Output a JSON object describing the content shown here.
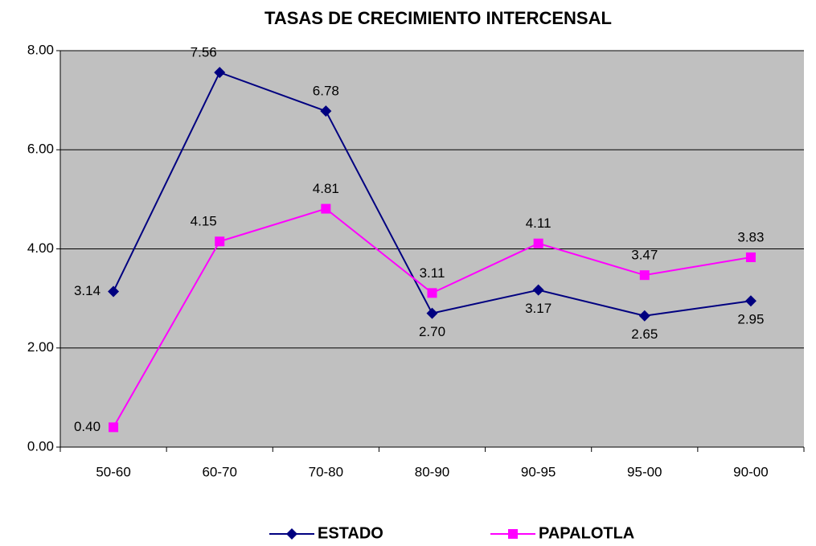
{
  "chart_data": {
    "type": "line",
    "title": "TASAS DE CRECIMIENTO INTERCENSAL",
    "categories": [
      "50-60",
      "60-70",
      "70-80",
      "80-90",
      "90-95",
      "95-00",
      "90-00"
    ],
    "series": [
      {
        "name": "ESTADO",
        "color": "#000080",
        "marker": "diamond",
        "values": [
          3.14,
          7.56,
          6.78,
          2.7,
          3.17,
          2.65,
          2.95
        ],
        "value_labels": [
          "3.14",
          "7.56",
          "6.78",
          "2.70",
          "3.17",
          "2.65",
          "2.95"
        ]
      },
      {
        "name": "PAPALOTLA",
        "color": "#ff00ff",
        "marker": "square",
        "values": [
          0.4,
          4.15,
          4.81,
          3.11,
          4.11,
          3.47,
          3.83
        ],
        "value_labels": [
          "0.40",
          "4.15",
          "4.81",
          "3.11",
          "4.11",
          "3.47",
          "3.83"
        ]
      }
    ],
    "ylim": [
      0,
      8
    ],
    "yticks": [
      {
        "value": 0,
        "label": "0.00"
      },
      {
        "value": 2,
        "label": "2.00"
      },
      {
        "value": 4,
        "label": "4.00"
      },
      {
        "value": 6,
        "label": "6.00"
      },
      {
        "value": 8,
        "label": "8.00"
      }
    ],
    "grid": true,
    "legend": "bottom",
    "plot_background": "#c0c0c0"
  }
}
